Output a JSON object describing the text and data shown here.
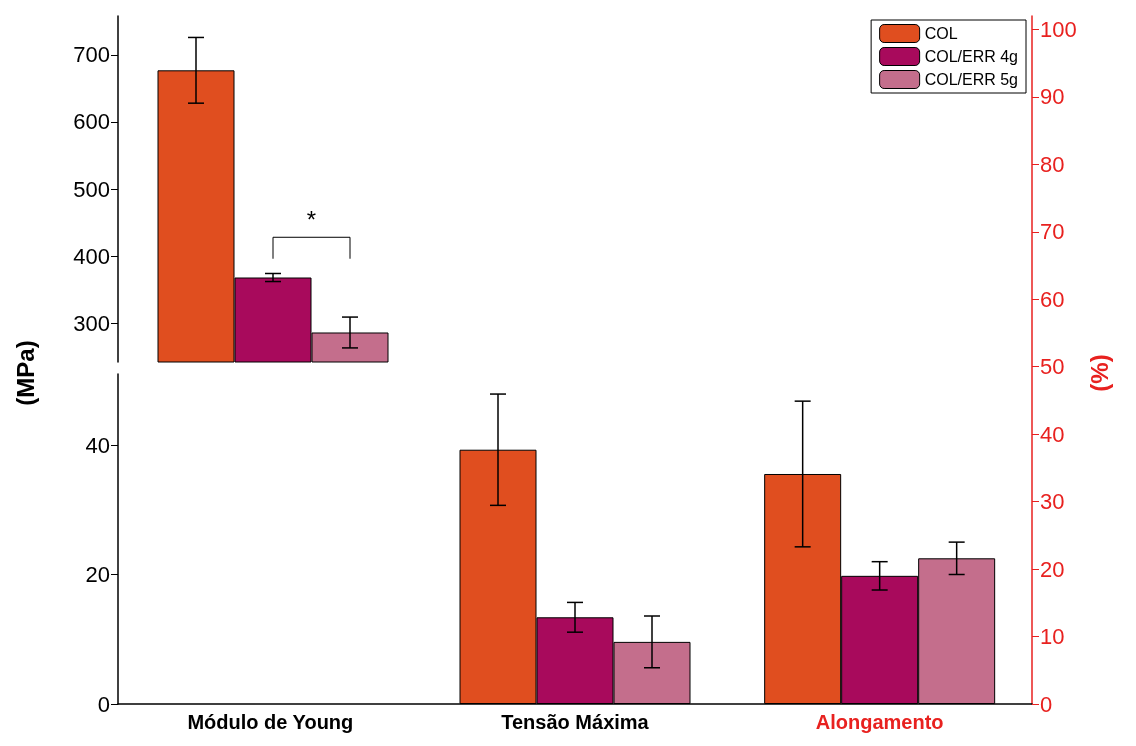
{
  "chart_data": [
    {
      "type": "bar",
      "categories": [
        null
      ],
      "ylim": [
        242,
        758
      ],
      "yticks": [
        300,
        400,
        500,
        600,
        700
      ],
      "annotations": [
        "*"
      ],
      "grid": false,
      "series": [
        {
          "color": "#e04e1f",
          "values": [
            677
          ],
          "errors": [
            49
          ]
        },
        {
          "color": "#a80a5c",
          "values": [
            368
          ],
          "errors": [
            6
          ]
        },
        {
          "color": "#c46e8c",
          "values": [
            286
          ],
          "errors": [
            23
          ]
        }
      ]
    },
    {
      "type": "bar",
      "categories": [
        "Módulo de Young",
        "Tensão Máxima",
        "Alongamento"
      ],
      "ylim": [
        0,
        51
      ],
      "yticks": [
        0,
        20,
        40
      ],
      "y2lim": [
        0,
        102
      ],
      "y2ticks": [
        0,
        10,
        20,
        30,
        40,
        50,
        60,
        70,
        80,
        90,
        100
      ],
      "ylabel": "(MPa)",
      "y2label": "(%)",
      "grid": false,
      "legend": "top right",
      "series": [
        {
          "name": "COL",
          "color": "#e04e1f",
          "values": [
            null,
            39.3,
            null
          ],
          "errors": [
            null,
            8.6,
            null
          ]
        },
        {
          "name": "COL/ERR 4g",
          "color": "#a80a5c",
          "values": [
            null,
            13.4,
            null
          ],
          "errors": [
            null,
            2.3,
            null
          ]
        },
        {
          "name": "COL/ERR 5g",
          "color": "#c46e8c",
          "values": [
            null,
            9.6,
            null
          ],
          "errors": [
            null,
            4,
            null
          ]
        },
        {
          "color": "#e04e1f",
          "axis": "y2",
          "values": [
            null,
            null,
            34.1
          ],
          "errors": [
            null,
            null,
            10.8
          ]
        },
        {
          "color": "#a80a5c",
          "axis": "y2",
          "values": [
            null,
            null,
            19
          ],
          "errors": [
            null,
            null,
            2.1
          ]
        },
        {
          "color": "#c46e8c",
          "axis": "y2",
          "values": [
            null,
            null,
            21.6
          ],
          "errors": [
            null,
            null,
            2.4
          ]
        }
      ]
    }
  ]
}
